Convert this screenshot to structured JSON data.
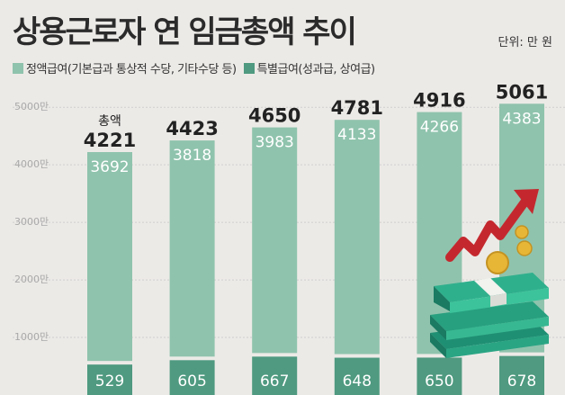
{
  "title": "상용근로자 연 임금총액 추이",
  "unit": "단위: 만 원",
  "colors": {
    "regular": "#8fc3ad",
    "special": "#4f9a80",
    "text_regular": "#ffffff",
    "text_total": "#222222",
    "grid": "#cfcfcf",
    "axis_text": "#a9a9a9"
  },
  "chart_data": {
    "type": "bar",
    "stacked": true,
    "categories": [
      "",
      "",
      "",
      "",
      "",
      ""
    ],
    "series": [
      {
        "name": "정액급여(기본급과 통상적 수당, 기타수당 등)",
        "values": [
          3692,
          3818,
          3983,
          4133,
          4266,
          4383
        ]
      },
      {
        "name": "특별급여(성과급, 상여급)",
        "values": [
          529,
          605,
          667,
          648,
          650,
          678
        ]
      }
    ],
    "totals": [
      4221,
      4423,
      4650,
      4781,
      4916,
      5061
    ],
    "total_label": "총액",
    "yticks": [
      1000,
      2000,
      3000,
      4000,
      5000
    ],
    "ytick_labels": [
      "1000만",
      "2000만",
      "3000만",
      "4000만",
      "5000만"
    ],
    "ylim": [
      0,
      5300
    ],
    "grid": true,
    "legend_position": "top-left"
  },
  "decoration": {
    "icon": "money-stack-rising-arrow-icon"
  }
}
